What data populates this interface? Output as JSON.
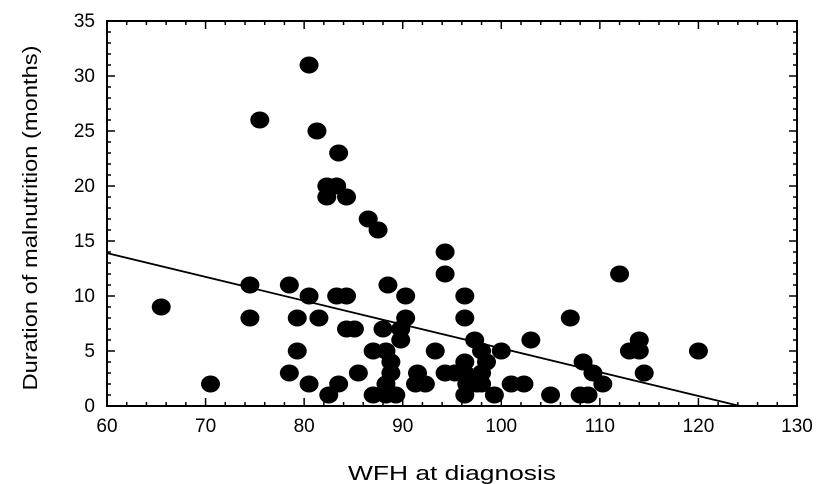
{
  "chart_data": {
    "type": "scatter",
    "title": "",
    "xlabel": "WFH at diagnosis",
    "ylabel": "Duration of malnutrition (months)",
    "xlim": [
      60,
      130
    ],
    "ylim": [
      0,
      35
    ],
    "xticks": [
      60,
      70,
      80,
      90,
      100,
      110,
      120,
      130
    ],
    "yticks": [
      0,
      5,
      10,
      15,
      20,
      25,
      30,
      35
    ],
    "grid": false,
    "legend": "none",
    "marker_color": "#000000",
    "series": [
      {
        "points": [
          [
            65.5,
            9
          ],
          [
            70.5,
            2
          ],
          [
            74.5,
            11
          ],
          [
            74.5,
            8
          ],
          [
            75.5,
            26
          ],
          [
            78.5,
            11
          ],
          [
            78.5,
            3
          ],
          [
            79.3,
            8
          ],
          [
            79.3,
            5
          ],
          [
            80.5,
            31
          ],
          [
            80.5,
            10
          ],
          [
            80.5,
            2
          ],
          [
            81.3,
            25
          ],
          [
            81.5,
            8
          ],
          [
            82.3,
            20
          ],
          [
            82.3,
            19
          ],
          [
            82.5,
            1
          ],
          [
            83.3,
            20
          ],
          [
            83.3,
            10
          ],
          [
            83.5,
            23
          ],
          [
            83.5,
            2
          ],
          [
            84.3,
            19
          ],
          [
            84.3,
            10
          ],
          [
            84.3,
            7
          ],
          [
            85.1,
            7
          ],
          [
            85.5,
            3
          ],
          [
            86.5,
            17
          ],
          [
            87.0,
            5
          ],
          [
            87.0,
            1
          ],
          [
            87.5,
            16
          ],
          [
            88.0,
            7
          ],
          [
            88.3,
            5
          ],
          [
            88.3,
            2
          ],
          [
            88.3,
            1
          ],
          [
            88.5,
            11
          ],
          [
            88.8,
            4
          ],
          [
            88.8,
            3
          ],
          [
            89.3,
            1
          ],
          [
            89.8,
            7
          ],
          [
            89.8,
            6
          ],
          [
            90.3,
            10
          ],
          [
            90.3,
            8
          ],
          [
            91.3,
            2
          ],
          [
            91.5,
            3
          ],
          [
            92.3,
            2
          ],
          [
            93.3,
            5
          ],
          [
            94.3,
            14
          ],
          [
            94.3,
            12
          ],
          [
            94.3,
            3
          ],
          [
            95.3,
            3
          ],
          [
            96.3,
            10
          ],
          [
            96.3,
            8
          ],
          [
            96.3,
            4
          ],
          [
            96.3,
            3
          ],
          [
            96.3,
            1
          ],
          [
            96.5,
            2
          ],
          [
            97.3,
            6
          ],
          [
            97.5,
            2
          ],
          [
            98.0,
            5
          ],
          [
            98.0,
            3
          ],
          [
            98.0,
            2
          ],
          [
            98.5,
            4
          ],
          [
            99.3,
            1
          ],
          [
            100.0,
            5
          ],
          [
            101.0,
            2
          ],
          [
            102.3,
            2
          ],
          [
            103.0,
            6
          ],
          [
            105.0,
            1
          ],
          [
            107.0,
            8
          ],
          [
            108.0,
            1
          ],
          [
            108.3,
            4
          ],
          [
            108.8,
            1
          ],
          [
            109.3,
            3
          ],
          [
            110.3,
            2
          ],
          [
            112.0,
            12
          ],
          [
            113.0,
            5
          ],
          [
            114.0,
            6
          ],
          [
            114.0,
            5
          ],
          [
            114.5,
            3
          ],
          [
            120.0,
            5
          ]
        ]
      }
    ],
    "trend_line": {
      "x": [
        60,
        124.2
      ],
      "y": [
        13.9,
        0
      ]
    }
  }
}
